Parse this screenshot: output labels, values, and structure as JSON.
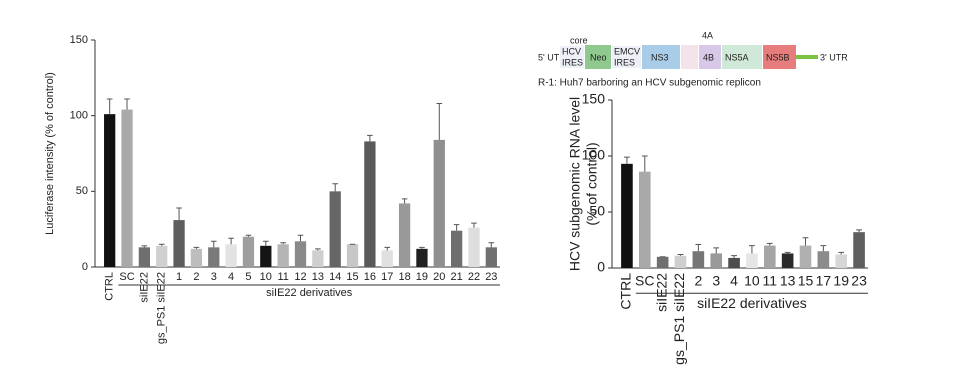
{
  "chart_data": [
    {
      "type": "bar",
      "ylabel": "Luciferase intensity (% of control)",
      "categories": [
        "CTRL",
        "SC",
        "siIE22",
        "gs_PS1 siIE22",
        "1",
        "2",
        "3",
        "4",
        "5",
        "10",
        "11",
        "12",
        "13",
        "14",
        "15",
        "16",
        "17",
        "18",
        "19",
        "20",
        "21",
        "22",
        "23"
      ],
      "values": [
        101,
        104,
        13,
        14,
        31,
        12,
        13,
        15,
        20,
        14,
        15,
        17,
        11,
        50,
        15,
        83,
        11,
        42,
        12,
        84,
        24,
        26,
        13
      ],
      "errors": [
        10,
        7,
        1,
        1,
        8,
        1,
        4,
        4,
        1,
        3,
        1,
        4,
        1,
        5,
        0,
        4,
        2,
        3,
        1,
        24,
        4,
        3,
        3
      ],
      "colors": [
        "#111111",
        "#a9a9a9",
        "#6f6f6f",
        "#d0d0d0",
        "#5e5e5e",
        "#bdbdbd",
        "#7a7a7a",
        "#e3e3e3",
        "#9e9e9e",
        "#141414",
        "#b5b5b5",
        "#8a8a8a",
        "#cfcfcf",
        "#666666",
        "#c7c7c7",
        "#5a5a5a",
        "#e0e0e0",
        "#999999",
        "#202020",
        "#8f8f8f",
        "#6e6e6e",
        "#dedede",
        "#707070"
      ],
      "group_label": "siIE22 derivatives",
      "ylim": [
        0,
        150
      ],
      "yticks": [
        0,
        50,
        100,
        150
      ]
    },
    {
      "type": "bar",
      "ylabel": [
        "HCV subgenomic RNA level",
        "(% of control)"
      ],
      "categories": [
        "CTRL",
        "SC",
        "siIE22",
        "gs_PS1 siIE22",
        "2",
        "3",
        "4",
        "10",
        "11",
        "13",
        "15",
        "17",
        "19",
        "23"
      ],
      "values": [
        93,
        86,
        10,
        11,
        15,
        13,
        9,
        13,
        20,
        13,
        20,
        15,
        12,
        32
      ],
      "errors": [
        6,
        14,
        0,
        1,
        6,
        5,
        2,
        7,
        2,
        1,
        7,
        5,
        2,
        2
      ],
      "colors": [
        "#111111",
        "#a9a9a9",
        "#6f6f6f",
        "#cfcfcf",
        "#757575",
        "#9a9a9a",
        "#4d4d4d",
        "#e6e6e6",
        "#a5a5a5",
        "#2a2a2a",
        "#b0b0b0",
        "#8c8c8c",
        "#d6d6d6",
        "#5f5f5f"
      ],
      "group_label": "siIE22 derivatives",
      "ylim": [
        0,
        150
      ],
      "yticks": [
        0,
        50,
        100,
        150
      ]
    }
  ],
  "replicon": {
    "utr5": "5' UTR",
    "core": "core",
    "hcv_ires": [
      "HCV",
      "IRES"
    ],
    "neo": "Neo",
    "emcv_ires": [
      "EMCV",
      "IRES"
    ],
    "ns3": "NS3",
    "ns4a": "4A",
    "ns4b": "4B",
    "ns5a": "NS5A",
    "ns5b": "NS5B",
    "utr3": "3' UTR",
    "caption": "R-1: Huh7  barboring an HCV subgenomic replicon"
  }
}
